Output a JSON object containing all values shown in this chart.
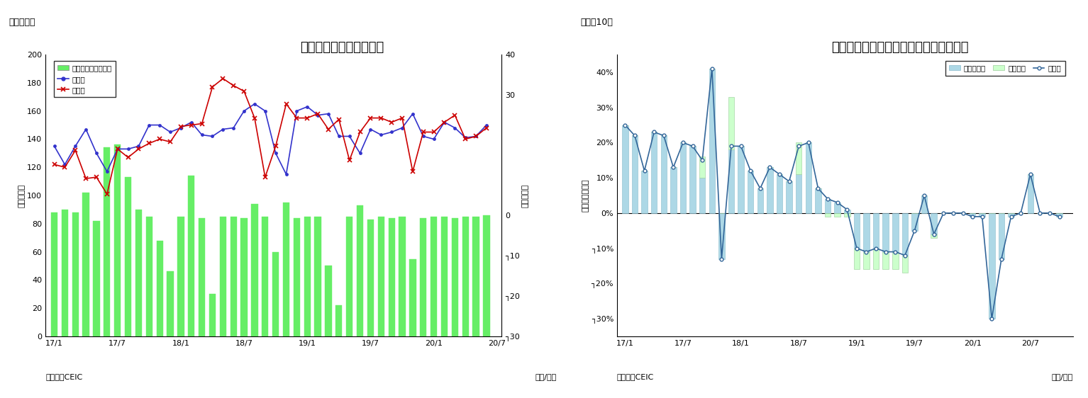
{
  "chart1": {
    "title": "インドネシア　貿易収支",
    "subtitle": "（図表９）",
    "ylabel_left": "（億ドル）",
    "ylabel_right": "（億ドル）",
    "xlabel": "（年/月）",
    "source": "（資料）CEIC",
    "xtick_labels": [
      "17/1",
      "17/7",
      "18/1",
      "18/7",
      "19/1",
      "19/7",
      "20/1",
      "20/7"
    ],
    "ylim_left": [
      0,
      200
    ],
    "ylim_right": [
      -30,
      40
    ],
    "yticks_left": [
      0,
      20,
      40,
      60,
      80,
      100,
      120,
      140,
      160,
      180,
      200
    ],
    "yticks_right_labels": [
      "40",
      "30",
      "0",
      "┐10",
      "┐20",
      "┐30"
    ],
    "bar_values": [
      88,
      90,
      88,
      102,
      82,
      134,
      136,
      113,
      90,
      85,
      68,
      46,
      85,
      114,
      84,
      30,
      85,
      85,
      84,
      94,
      85,
      60,
      95,
      84,
      85,
      85,
      50,
      22,
      85,
      93,
      83,
      85,
      84,
      85,
      55,
      84,
      85,
      85,
      84,
      85,
      85,
      86
    ],
    "export_values": [
      135,
      122,
      135,
      147,
      130,
      117,
      133,
      133,
      135,
      150,
      150,
      145,
      148,
      152,
      143,
      142,
      147,
      148,
      160,
      165,
      160,
      130,
      115,
      160,
      163,
      157,
      158,
      142,
      142,
      130,
      147,
      143,
      145,
      148,
      158,
      142,
      140,
      152,
      148,
      141,
      142,
      150
    ],
    "import_values": [
      122,
      120,
      132,
      112,
      113,
      101,
      133,
      127,
      133,
      137,
      140,
      138,
      149,
      150,
      151,
      177,
      183,
      178,
      174,
      155,
      113,
      135,
      165,
      155,
      155,
      158,
      147,
      154,
      125,
      145,
      155,
      155,
      152,
      155,
      117,
      145,
      145,
      152,
      157,
      140,
      142,
      148
    ],
    "legend_bar": "貿易収支（右目盛）",
    "legend_export": "輸出額",
    "legend_import": "輸入額",
    "bar_color": "#66ee66",
    "export_color": "#3333cc",
    "import_color": "#cc0000",
    "n_months": 42
  },
  "chart2": {
    "title": "インドネシア　輸出の伸び率（品目別）",
    "subtitle": "（図表10）",
    "ylabel_left": "（前年同月比）",
    "xlabel": "（年/月）",
    "source": "（資料）CEIC",
    "xtick_labels": [
      "17/1",
      "17/7",
      "18/1",
      "18/7",
      "19/1",
      "19/7",
      "20/1",
      "20/7"
    ],
    "ylim": [
      -0.35,
      0.45
    ],
    "yticks_vals": [
      0.4,
      0.3,
      0.2,
      0.1,
      0.0,
      -0.1,
      -0.2,
      -0.3
    ],
    "yticks_labels": [
      "40%",
      "30%",
      "20%",
      "10%",
      "0%",
      "┐10%",
      "┐20%",
      "┐30%"
    ],
    "non_oil_gas": [
      0.25,
      0.22,
      0.12,
      0.23,
      0.22,
      0.13,
      0.2,
      0.19,
      0.1,
      0.41,
      -0.13,
      0.18,
      0.19,
      0.12,
      0.07,
      0.13,
      0.11,
      0.09,
      0.11,
      0.2,
      0.07,
      0.04,
      0.03,
      0.01,
      -0.1,
      -0.11,
      -0.1,
      -0.11,
      -0.11,
      -0.12,
      -0.05,
      0.05,
      -0.06,
      0.0,
      0.0,
      0.0,
      -0.01,
      -0.01,
      -0.3,
      -0.13,
      -0.01,
      0.0,
      0.11,
      0.0,
      0.0,
      -0.01
    ],
    "oil_gas": [
      0.0,
      0.0,
      0.0,
      0.0,
      0.0,
      0.0,
      0.0,
      0.0,
      0.06,
      0.0,
      0.0,
      0.15,
      0.0,
      0.0,
      0.0,
      0.0,
      0.0,
      0.0,
      0.09,
      0.0,
      0.0,
      -0.01,
      -0.01,
      -0.01,
      -0.06,
      -0.05,
      -0.06,
      -0.05,
      -0.05,
      -0.05,
      0.0,
      0.0,
      -0.01,
      0.0,
      0.0,
      0.0,
      0.0,
      0.0,
      0.0,
      0.0,
      0.0,
      0.0,
      0.0,
      0.0,
      0.0,
      0.0
    ],
    "total_export": [
      0.25,
      0.22,
      0.12,
      0.23,
      0.22,
      0.13,
      0.2,
      0.19,
      0.15,
      0.41,
      -0.13,
      0.19,
      0.19,
      0.12,
      0.07,
      0.13,
      0.11,
      0.09,
      0.19,
      0.2,
      0.07,
      0.04,
      0.03,
      0.01,
      -0.1,
      -0.11,
      -0.1,
      -0.11,
      -0.11,
      -0.12,
      -0.05,
      0.05,
      -0.06,
      0.0,
      0.0,
      0.0,
      -0.01,
      -0.01,
      -0.3,
      -0.13,
      -0.01,
      0.0,
      0.11,
      0.0,
      0.0,
      -0.01
    ],
    "non_oil_color": "#add8e6",
    "oil_color": "#ccffcc",
    "total_color": "#336699",
    "legend_non_oil": "非石油ガス",
    "legend_oil": "石油ガス",
    "legend_total": "輸出額",
    "n_months": 46
  }
}
